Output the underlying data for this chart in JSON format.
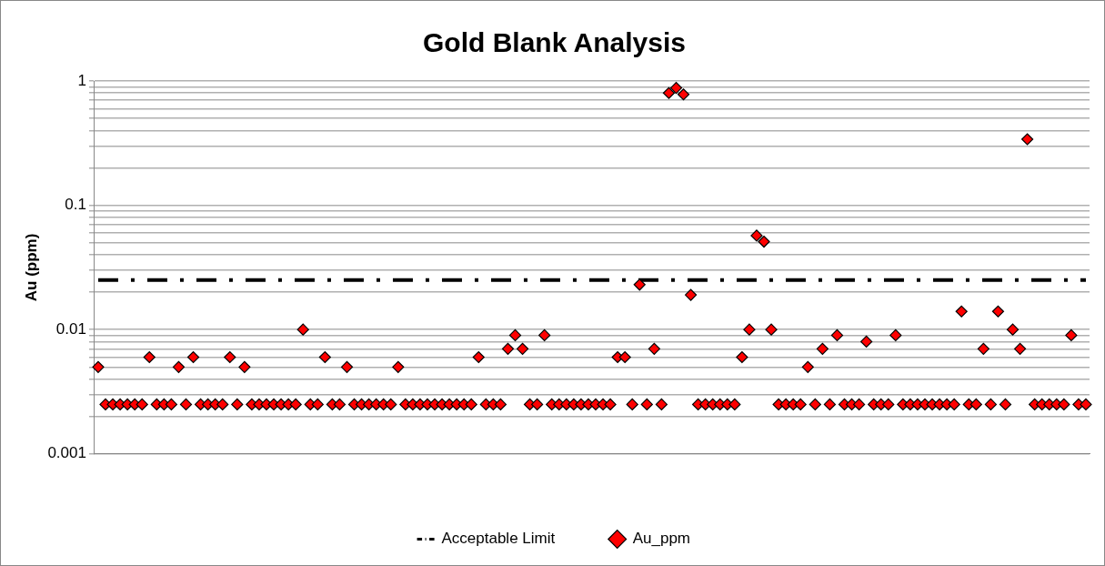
{
  "chart_data": {
    "type": "scatter",
    "title": "Gold Blank Analysis",
    "ylabel": "Au (ppm)",
    "categories": [
      null,
      null,
      null,
      null,
      null,
      null,
      null,
      null,
      null,
      null,
      null,
      null,
      null,
      null,
      null,
      null,
      null,
      null,
      null,
      null,
      null,
      null,
      null,
      null,
      null,
      null,
      null,
      null,
      null,
      null,
      null,
      null,
      null,
      null,
      null,
      null,
      null,
      null,
      null,
      null,
      null,
      null,
      null,
      null,
      null,
      null,
      null,
      null,
      null,
      null,
      null,
      null,
      null,
      null,
      null,
      null,
      null,
      null,
      null,
      null,
      null,
      null,
      null,
      null,
      null,
      null,
      null,
      null,
      null,
      null,
      null,
      null,
      null,
      null,
      null,
      null,
      null,
      null,
      null,
      null,
      null,
      null,
      null,
      null,
      null,
      null,
      null,
      null,
      null,
      null,
      null,
      null,
      null,
      null,
      null,
      null,
      null,
      null,
      null,
      null,
      null,
      null,
      null,
      null,
      null,
      null,
      null,
      null,
      null,
      null,
      null,
      null,
      null,
      null,
      null,
      null,
      null,
      null,
      null,
      null,
      null,
      null,
      null,
      null,
      null,
      null,
      null,
      null,
      null,
      null,
      null,
      null,
      null,
      null,
      null,
      null
    ],
    "series": [
      {
        "name": "Acceptable Limit",
        "type": "line",
        "line_style": "dashed",
        "marker": "none",
        "color": "#000000",
        "values": [
          0.025,
          0.025,
          0.025,
          0.025,
          0.025,
          0.025,
          0.025,
          0.025,
          0.025,
          0.025,
          0.025,
          0.025,
          0.025,
          0.025,
          0.025,
          0.025,
          0.025,
          0.025,
          0.025,
          0.025,
          0.025,
          0.025,
          0.025,
          0.025,
          0.025,
          0.025,
          0.025,
          0.025,
          0.025,
          0.025,
          0.025,
          0.025,
          0.025,
          0.025,
          0.025,
          0.025,
          0.025,
          0.025,
          0.025,
          0.025,
          0.025,
          0.025,
          0.025,
          0.025,
          0.025,
          0.025,
          0.025,
          0.025,
          0.025,
          0.025,
          0.025,
          0.025,
          0.025,
          0.025,
          0.025,
          0.025,
          0.025,
          0.025,
          0.025,
          0.025,
          0.025,
          0.025,
          0.025,
          0.025,
          0.025,
          0.025,
          0.025,
          0.025,
          0.025,
          0.025,
          0.025,
          0.025,
          0.025,
          0.025,
          0.025,
          0.025,
          0.025,
          0.025,
          0.025,
          0.025,
          0.025,
          0.025,
          0.025,
          0.025,
          0.025,
          0.025,
          0.025,
          0.025,
          0.025,
          0.025,
          0.025,
          0.025,
          0.025,
          0.025,
          0.025,
          0.025,
          0.025,
          0.025,
          0.025,
          0.025,
          0.025,
          0.025,
          0.025,
          0.025,
          0.025,
          0.025,
          0.025,
          0.025,
          0.025,
          0.025,
          0.025,
          0.025,
          0.025,
          0.025,
          0.025,
          0.025,
          0.025,
          0.025,
          0.025,
          0.025,
          0.025,
          0.025,
          0.025,
          0.025,
          0.025,
          0.025,
          0.025,
          0.025,
          0.025,
          0.025,
          0.025,
          0.025,
          0.025,
          0.025,
          0.025,
          0.025
        ]
      },
      {
        "name": "Au_ppm",
        "marker": "diamond",
        "color": "#ff0000",
        "values": [
          0.005,
          0.0025,
          0.0025,
          0.0025,
          0.0025,
          0.0025,
          0.0025,
          0.006,
          0.0025,
          0.0025,
          0.0025,
          0.005,
          0.0025,
          0.006,
          0.0025,
          0.0025,
          0.0025,
          0.0025,
          0.006,
          0.0025,
          0.005,
          0.0025,
          0.0025,
          0.0025,
          0.0025,
          0.0025,
          0.0025,
          0.0025,
          0.01,
          0.0025,
          0.0025,
          0.006,
          0.0025,
          0.0025,
          0.005,
          0.0025,
          0.0025,
          0.0025,
          0.0025,
          0.0025,
          0.0025,
          0.005,
          0.0025,
          0.0025,
          0.0025,
          0.0025,
          0.0025,
          0.0025,
          0.0025,
          0.0025,
          0.0025,
          0.0025,
          0.006,
          0.0025,
          0.0025,
          0.0025,
          0.007,
          0.009,
          0.007,
          0.0025,
          0.0025,
          0.009,
          0.0025,
          0.0025,
          0.0025,
          0.0025,
          0.0025,
          0.0025,
          0.0025,
          0.0025,
          0.0025,
          0.006,
          0.006,
          0.0025,
          0.023,
          0.0025,
          0.007,
          0.0025,
          0.8,
          0.88,
          0.78,
          0.019,
          0.0025,
          0.0025,
          0.0025,
          0.0025,
          0.0025,
          0.0025,
          0.006,
          0.01,
          0.057,
          0.051,
          0.01,
          0.0025,
          0.0025,
          0.0025,
          0.0025,
          0.005,
          0.0025,
          0.007,
          0.0025,
          0.009,
          0.0025,
          0.0025,
          0.0025,
          0.008,
          0.0025,
          0.0025,
          0.0025,
          0.009,
          0.0025,
          0.0025,
          0.0025,
          0.0025,
          0.0025,
          0.0025,
          0.0025,
          0.0025,
          0.014,
          0.0025,
          0.0025,
          0.007,
          0.0025,
          0.014,
          0.0025,
          0.01,
          0.007,
          0.34,
          0.0025,
          0.0025,
          0.0025,
          0.0025,
          0.0025,
          0.009,
          0.0025,
          0.0025
        ]
      }
    ],
    "log": "y",
    "ylim": [
      0.001,
      1
    ],
    "yticks": [
      0.001,
      {
        "value": 0.002,
        "label": null
      },
      {
        "value": 0.003,
        "label": null
      },
      {
        "value": 0.004,
        "label": null
      },
      {
        "value": 0.005,
        "label": null
      },
      {
        "value": 0.006,
        "label": null
      },
      {
        "value": 0.007,
        "label": null
      },
      {
        "value": 0.008,
        "label": null
      },
      {
        "value": 0.009,
        "label": null
      },
      0.01,
      {
        "value": 0.02,
        "label": null
      },
      {
        "value": 0.03,
        "label": null
      },
      {
        "value": 0.04,
        "label": null
      },
      {
        "value": 0.05,
        "label": null
      },
      {
        "value": 0.06,
        "label": null
      },
      {
        "value": 0.07,
        "label": null
      },
      {
        "value": 0.08,
        "label": null
      },
      {
        "value": 0.09,
        "label": null
      },
      0.1,
      {
        "value": 0.2,
        "label": null
      },
      {
        "value": 0.3,
        "label": null
      },
      {
        "value": 0.4,
        "label": null
      },
      {
        "value": 0.5,
        "label": null
      },
      {
        "value": 0.6,
        "label": null
      },
      {
        "value": 0.7,
        "label": null
      },
      {
        "value": 0.8,
        "label": null
      },
      {
        "value": 0.9,
        "label": null
      },
      1
    ],
    "grid": "y",
    "legend": "bottom"
  }
}
